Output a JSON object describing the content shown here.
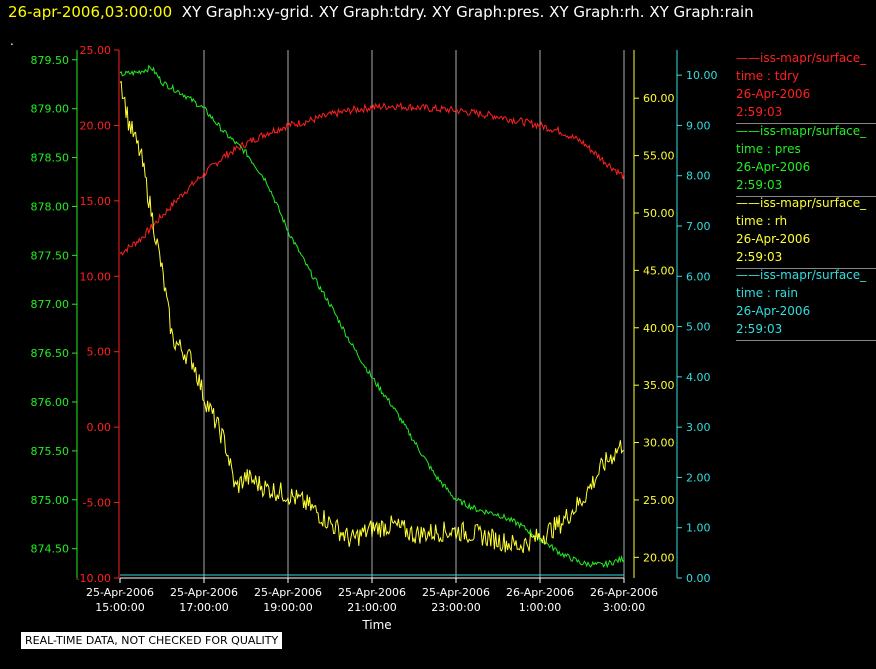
{
  "header": {
    "timestamp": "26-apr-2006,03:00:00",
    "graphs": "XY Graph:xy-grid.  XY Graph:tdry.  XY Graph:pres.  XY Graph:rh.  XY Graph:rain"
  },
  "marker": ".",
  "notice": "REAL-TIME DATA, NOT CHECKED FOR QUALITY",
  "legend": [
    {
      "title": "iss-mapr/surface_",
      "var": "time : tdry",
      "date": "26-Apr-2006",
      "time": "2:59:03",
      "color": "#ff2020"
    },
    {
      "title": "iss-mapr/surface_",
      "var": "time : pres",
      "date": "26-Apr-2006",
      "time": "2:59:03",
      "color": "#22ee22"
    },
    {
      "title": "iss-mapr/surface_",
      "var": "time : rh",
      "date": "26-Apr-2006",
      "time": "2:59:03",
      "color": "#ffff33"
    },
    {
      "title": "iss-mapr/surface_",
      "var": "time : rain",
      "date": "26-Apr-2006",
      "time": "2:59:03",
      "color": "#33dddd"
    }
  ],
  "chart_data": {
    "type": "line",
    "xlabel": "Time",
    "x_ticks": [
      [
        "25-Apr-2006",
        "15:00:00"
      ],
      [
        "25-Apr-2006",
        "17:00:00"
      ],
      [
        "25-Apr-2006",
        "19:00:00"
      ],
      [
        "25-Apr-2006",
        "21:00:00"
      ],
      [
        "25-Apr-2006",
        "23:00:00"
      ],
      [
        "26-Apr-2006",
        "1:00:00"
      ],
      [
        "26-Apr-2006",
        "3:00:00"
      ]
    ],
    "x_hours": [
      15,
      17,
      19,
      21,
      23,
      25,
      27
    ],
    "axes": {
      "tdry": {
        "color": "#ff2020",
        "range": [
          -10,
          25
        ],
        "ticks": [
          "-10.00",
          "-5.00",
          "0.00",
          "5.00",
          "10.00",
          "15.00",
          "20.00",
          "25.00"
        ]
      },
      "pres": {
        "color": "#22ee22",
        "range": [
          874.2,
          879.6
        ],
        "ticks": [
          "874.50",
          "875.00",
          "875.50",
          "876.00",
          "876.50",
          "877.00",
          "877.50",
          "878.00",
          "878.50",
          "879.00",
          "879.50"
        ]
      },
      "rh": {
        "color": "#ffff33",
        "range": [
          18.2,
          64.2
        ],
        "ticks": [
          "20.00",
          "25.00",
          "30.00",
          "35.00",
          "40.00",
          "45.00",
          "50.00",
          "55.00",
          "60.00"
        ]
      },
      "rain": {
        "color": "#33dddd",
        "range": [
          0,
          10.5
        ],
        "ticks": [
          "0.00",
          "1.00",
          "2.00",
          "3.00",
          "4.00",
          "5.00",
          "6.00",
          "7.00",
          "8.00",
          "9.00",
          "10.00"
        ]
      }
    },
    "series": [
      {
        "name": "tdry",
        "axis": "tdry",
        "color": "#ff2020",
        "points": [
          [
            15.0,
            11.5
          ],
          [
            15.5,
            12.5
          ],
          [
            16.0,
            14.0
          ],
          [
            16.5,
            15.5
          ],
          [
            17.0,
            16.8
          ],
          [
            17.5,
            18.0
          ],
          [
            18.0,
            18.8
          ],
          [
            18.5,
            19.5
          ],
          [
            19.0,
            20.0
          ],
          [
            19.5,
            20.3
          ],
          [
            20.0,
            20.7
          ],
          [
            20.5,
            21.0
          ],
          [
            21.0,
            21.2
          ],
          [
            21.5,
            21.3
          ],
          [
            22.0,
            21.2
          ],
          [
            22.5,
            21.1
          ],
          [
            23.0,
            21.0
          ],
          [
            23.5,
            20.8
          ],
          [
            24.0,
            20.6
          ],
          [
            24.5,
            20.3
          ],
          [
            25.0,
            20.0
          ],
          [
            25.5,
            19.6
          ],
          [
            26.0,
            18.9
          ],
          [
            26.5,
            17.7
          ],
          [
            27.0,
            16.6
          ]
        ]
      },
      {
        "name": "pres",
        "axis": "pres",
        "color": "#22ee22",
        "points": [
          [
            15.0,
            879.35
          ],
          [
            15.4,
            879.37
          ],
          [
            15.75,
            879.42
          ],
          [
            16.0,
            879.27
          ],
          [
            16.5,
            879.15
          ],
          [
            17.0,
            879.0
          ],
          [
            17.5,
            878.75
          ],
          [
            18.0,
            878.55
          ],
          [
            18.5,
            878.25
          ],
          [
            19.0,
            877.75
          ],
          [
            19.5,
            877.35
          ],
          [
            20.0,
            877.0
          ],
          [
            20.5,
            876.6
          ],
          [
            21.0,
            876.25
          ],
          [
            21.5,
            875.95
          ],
          [
            22.0,
            875.6
          ],
          [
            22.5,
            875.25
          ],
          [
            23.0,
            875.0
          ],
          [
            23.5,
            874.9
          ],
          [
            24.0,
            874.85
          ],
          [
            24.5,
            874.75
          ],
          [
            25.0,
            874.6
          ],
          [
            25.5,
            874.45
          ],
          [
            26.0,
            874.35
          ],
          [
            26.5,
            874.33
          ],
          [
            27.0,
            874.4
          ]
        ]
      },
      {
        "name": "rh",
        "axis": "rh",
        "color": "#ffff33",
        "points": [
          [
            15.0,
            62.0
          ],
          [
            15.2,
            58.0
          ],
          [
            15.5,
            55.0
          ],
          [
            15.75,
            50.0
          ],
          [
            16.0,
            45.0
          ],
          [
            16.25,
            39.0
          ],
          [
            16.75,
            37.0
          ],
          [
            17.0,
            34.0
          ],
          [
            17.5,
            30.0
          ],
          [
            17.75,
            26.0
          ],
          [
            18.0,
            27.0
          ],
          [
            18.5,
            26.0
          ],
          [
            19.0,
            25.5
          ],
          [
            19.5,
            24.5
          ],
          [
            20.0,
            23.0
          ],
          [
            20.5,
            21.5
          ],
          [
            21.0,
            22.5
          ],
          [
            21.5,
            22.8
          ],
          [
            22.0,
            22.0
          ],
          [
            22.5,
            22.2
          ],
          [
            23.0,
            22.3
          ],
          [
            23.5,
            22.0
          ],
          [
            24.0,
            21.5
          ],
          [
            24.5,
            21.0
          ],
          [
            25.0,
            21.8
          ],
          [
            25.5,
            23.0
          ],
          [
            26.0,
            25.0
          ],
          [
            26.5,
            28.0
          ],
          [
            27.0,
            30.0
          ]
        ]
      },
      {
        "name": "rain",
        "axis": "rain",
        "color": "#33dddd",
        "points": [
          [
            15.0,
            0.0
          ],
          [
            27.0,
            0.0
          ]
        ]
      }
    ]
  }
}
